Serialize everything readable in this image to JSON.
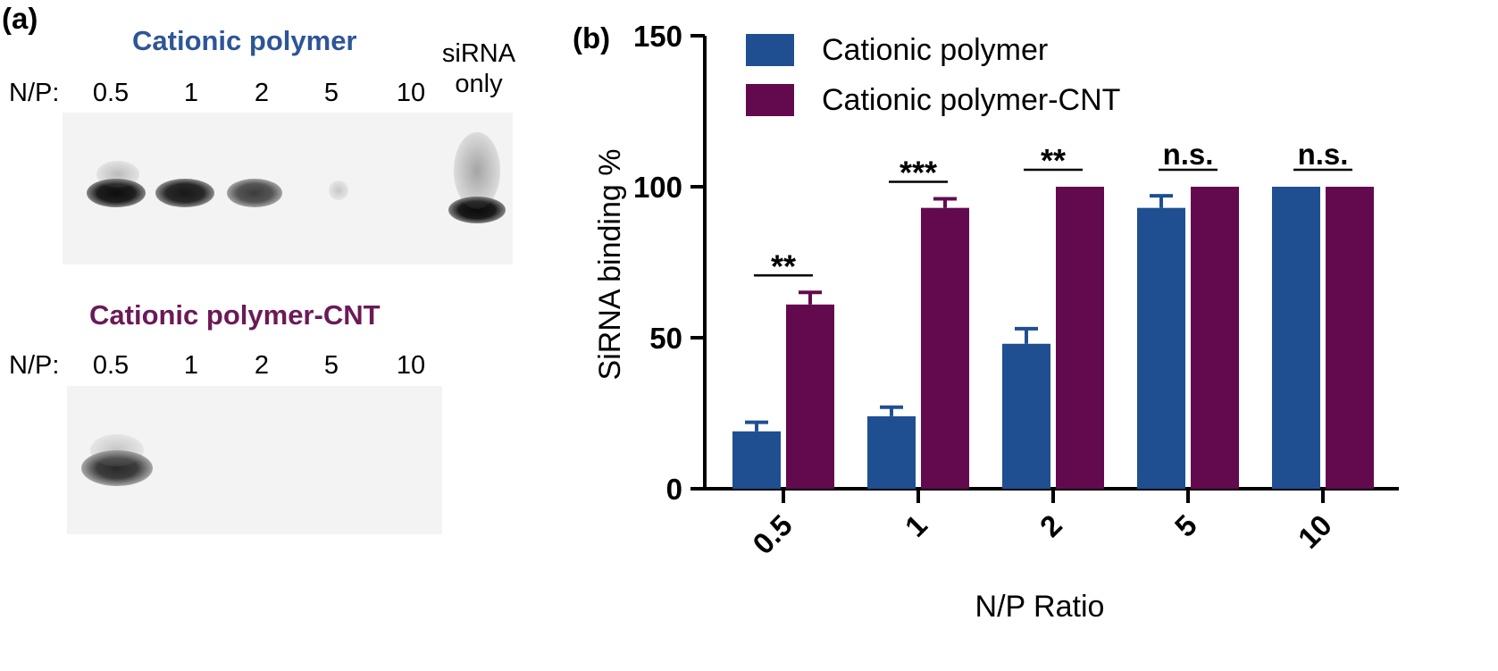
{
  "panel_a": {
    "letter": "(a)",
    "gel1": {
      "title": "Cationic polymer",
      "title_color": "#2e5597",
      "np_prefix": "N/P:",
      "lanes": [
        "0.5",
        "1",
        "2",
        "5",
        "10"
      ],
      "control_lane_label": "siRNA only",
      "control_lane_line1": "siRNA",
      "control_lane_line2": "only"
    },
    "gel2": {
      "title": "Cationic polymer-CNT",
      "title_color": "#6b1a56",
      "np_prefix": "N/P:",
      "lanes": [
        "0.5",
        "1",
        "2",
        "5",
        "10"
      ]
    }
  },
  "panel_b": {
    "letter": "(b)",
    "colors": {
      "series1": "#1f4f91",
      "series2": "#630a4f"
    }
  },
  "chart_data": {
    "type": "bar",
    "xlabel": "N/P Ratio",
    "ylabel": "SiRNA binding %",
    "categories": [
      "0.5",
      "1",
      "2",
      "5",
      "10"
    ],
    "ylim": [
      0,
      150
    ],
    "yticks": [
      0,
      50,
      100,
      150
    ],
    "series": [
      {
        "name": "Cationic polymer",
        "values": [
          19,
          24,
          48,
          93,
          100
        ],
        "errors": [
          3,
          3,
          5,
          4,
          0
        ]
      },
      {
        "name": "Cationic polymer-CNT",
        "values": [
          61,
          93,
          100,
          100,
          100
        ],
        "errors": [
          4,
          3,
          0,
          0,
          0
        ]
      }
    ],
    "significance": [
      "**",
      "***",
      "**",
      "n.s.",
      "n.s."
    ],
    "legend_position": "top-left",
    "grid": false
  }
}
